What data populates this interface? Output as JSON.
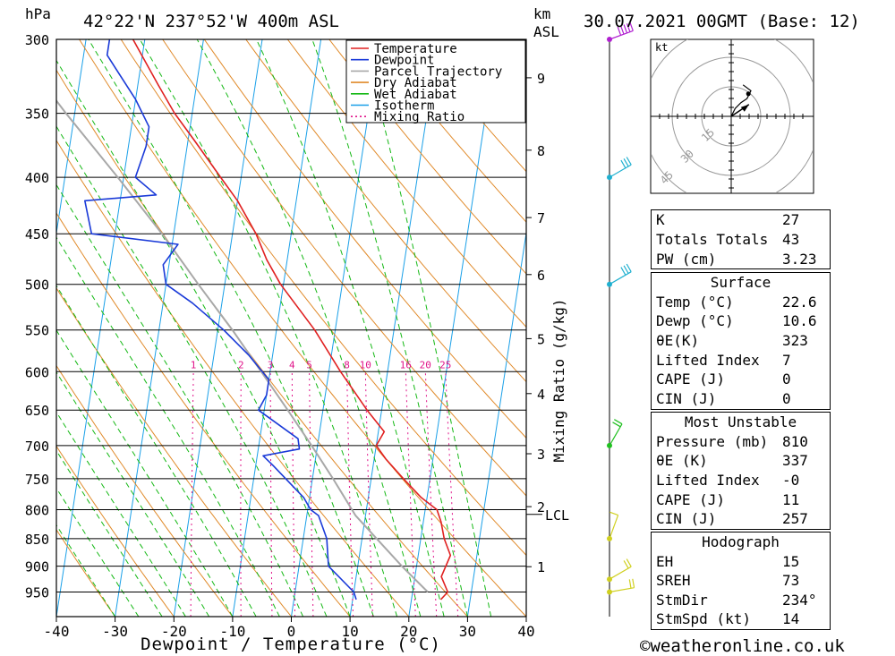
{
  "header": {
    "units_left": "hPa",
    "location": "42°22'N  237°52'W  400m  ASL",
    "km_label": "km",
    "asl_label": "ASL",
    "datetime": "30.07.2021  00GMT  (Base: 12)"
  },
  "chart_data": {
    "type": "skew-t",
    "xlabel": "Dewpoint / Temperature (°C)",
    "ylabel_right": "Mixing Ratio (g/kg)",
    "pressure_levels": [
      300,
      350,
      400,
      450,
      500,
      550,
      600,
      650,
      700,
      750,
      800,
      850,
      900,
      950
    ],
    "temperature_ticks": [
      -40,
      -30,
      -20,
      -10,
      0,
      10,
      20,
      30,
      40
    ],
    "km_levels": [
      {
        "km": 1,
        "p": 901
      },
      {
        "km": 2,
        "p": 795
      },
      {
        "km": 3,
        "p": 712
      },
      {
        "km": 4,
        "p": 628
      },
      {
        "km": 5,
        "p": 560
      },
      {
        "km": 6,
        "p": 490
      },
      {
        "km": 7,
        "p": 435
      },
      {
        "km": 8,
        "p": 378
      },
      {
        "km": 9,
        "p": 325
      }
    ],
    "lcl": {
      "label": "LCL",
      "p": 808
    },
    "mixing_ratio_labels": [
      "1",
      "2",
      "3",
      "4",
      "5",
      "8",
      "10",
      "16",
      "20",
      "25"
    ],
    "mixing_ratio_values": [
      1,
      2,
      3,
      4,
      5,
      8,
      10,
      16,
      20,
      25
    ],
    "legend": [
      "Temperature",
      "Dewpoint",
      "Parcel Trajectory",
      "Dry Adiabat",
      "Wet Adiabat",
      "Isotherm",
      "Mixing Ratio"
    ],
    "colors": {
      "temperature": "#e02020",
      "dewpoint": "#1a3ad8",
      "parcel": "#a8a8a8",
      "dry_adiabat": "#e08a2a",
      "wet_adiabat": "#14b814",
      "isotherm": "#1aa0e8",
      "mixing_ratio": "#e0148a"
    },
    "temperature": [
      {
        "p": 965,
        "t": 25.0
      },
      {
        "p": 950,
        "t": 26.0
      },
      {
        "p": 920,
        "t": 24.5
      },
      {
        "p": 880,
        "t": 25.5
      },
      {
        "p": 850,
        "t": 24.0
      },
      {
        "p": 820,
        "t": 23.0
      },
      {
        "p": 800,
        "t": 22.0
      },
      {
        "p": 780,
        "t": 19.0
      },
      {
        "p": 750,
        "t": 15.5
      },
      {
        "p": 720,
        "t": 12.0
      },
      {
        "p": 700,
        "t": 10.0
      },
      {
        "p": 680,
        "t": 11.0
      },
      {
        "p": 650,
        "t": 7.5
      },
      {
        "p": 600,
        "t": 2.0
      },
      {
        "p": 550,
        "t": -3.5
      },
      {
        "p": 500,
        "t": -10.5
      },
      {
        "p": 475,
        "t": -13.5
      },
      {
        "p": 450,
        "t": -16.0
      },
      {
        "p": 420,
        "t": -20.0
      },
      {
        "p": 400,
        "t": -23.5
      },
      {
        "p": 370,
        "t": -29.0
      },
      {
        "p": 350,
        "t": -33.0
      },
      {
        "p": 330,
        "t": -36.5
      },
      {
        "p": 300,
        "t": -42.0
      }
    ],
    "dewpoint": [
      {
        "p": 965,
        "t": 10.6
      },
      {
        "p": 950,
        "t": 10.0
      },
      {
        "p": 900,
        "t": 5.0
      },
      {
        "p": 850,
        "t": 4.0
      },
      {
        "p": 810,
        "t": 2.0
      },
      {
        "p": 800,
        "t": 0.5
      },
      {
        "p": 780,
        "t": -1.0
      },
      {
        "p": 730,
        "t": -7.0
      },
      {
        "p": 715,
        "t": -9.0
      },
      {
        "p": 705,
        "t": -3.0
      },
      {
        "p": 690,
        "t": -3.5
      },
      {
        "p": 650,
        "t": -11.0
      },
      {
        "p": 630,
        "t": -10.0
      },
      {
        "p": 610,
        "t": -10.0
      },
      {
        "p": 580,
        "t": -14.0
      },
      {
        "p": 550,
        "t": -19.0
      },
      {
        "p": 520,
        "t": -25.0
      },
      {
        "p": 500,
        "t": -30.0
      },
      {
        "p": 480,
        "t": -31.0
      },
      {
        "p": 460,
        "t": -29.0
      },
      {
        "p": 450,
        "t": -44.0
      },
      {
        "p": 420,
        "t": -46.0
      },
      {
        "p": 415,
        "t": -34.0
      },
      {
        "p": 400,
        "t": -38.0
      },
      {
        "p": 375,
        "t": -37.0
      },
      {
        "p": 360,
        "t": -37.0
      },
      {
        "p": 340,
        "t": -40.0
      },
      {
        "p": 310,
        "t": -46.0
      },
      {
        "p": 300,
        "t": -46.0
      }
    ],
    "parcel": [
      {
        "p": 950,
        "t": 22.6
      },
      {
        "p": 900,
        "t": 17.5
      },
      {
        "p": 850,
        "t": 12.5
      },
      {
        "p": 810,
        "t": 8.3
      },
      {
        "p": 750,
        "t": 3.5
      },
      {
        "p": 700,
        "t": -1.0
      },
      {
        "p": 650,
        "t": -6.0
      },
      {
        "p": 600,
        "t": -11.5
      },
      {
        "p": 550,
        "t": -17.5
      },
      {
        "p": 500,
        "t": -24.5
      },
      {
        "p": 450,
        "t": -32.0
      },
      {
        "p": 400,
        "t": -41.0
      },
      {
        "p": 350,
        "t": -51.5
      },
      {
        "p": 300,
        "t": -63.0
      }
    ],
    "hodograph": {
      "units_label": "kt",
      "ring_labels": [
        "15",
        "30",
        "45"
      ],
      "points": [
        {
          "u": 0,
          "v": 0
        },
        {
          "u": 2,
          "v": 4
        },
        {
          "u": 5,
          "v": 7
        },
        {
          "u": 8,
          "v": 9
        },
        {
          "u": 10,
          "v": 13
        },
        {
          "u": 6,
          "v": 16
        }
      ],
      "storm_motion": {
        "u": 9,
        "v": 6
      }
    },
    "wind_barbs": [
      {
        "p": 300,
        "dir": 250,
        "speed": 45,
        "color": "#b020d0"
      },
      {
        "p": 400,
        "dir": 240,
        "speed": 25,
        "color": "#20b0d0"
      },
      {
        "p": 500,
        "dir": 240,
        "speed": 30,
        "color": "#20b0d0"
      },
      {
        "p": 700,
        "dir": 210,
        "speed": 15,
        "color": "#20c020"
      },
      {
        "p": 850,
        "dir": 200,
        "speed": 10,
        "color": "#d0d020"
      },
      {
        "p": 925,
        "dir": 240,
        "speed": 15,
        "color": "#d0d020"
      },
      {
        "p": 950,
        "dir": 260,
        "speed": 15,
        "color": "#d0d020"
      }
    ]
  },
  "indices": {
    "general": [
      {
        "label": "K",
        "value": "27"
      },
      {
        "label": "Totals Totals",
        "value": "43"
      },
      {
        "label": "PW (cm)",
        "value": "3.23"
      }
    ],
    "surface": {
      "title": "Surface",
      "rows": [
        {
          "label": "Temp (°C)",
          "value": "22.6"
        },
        {
          "label": "Dewp (°C)",
          "value": "10.6"
        },
        {
          "label": "θE(K)",
          "value": "323"
        },
        {
          "label": "Lifted Index",
          "value": "7"
        },
        {
          "label": "CAPE (J)",
          "value": "0"
        },
        {
          "label": "CIN (J)",
          "value": "0"
        }
      ]
    },
    "most_unstable": {
      "title": "Most Unstable",
      "rows": [
        {
          "label": "Pressure (mb)",
          "value": "810"
        },
        {
          "label": "θE (K)",
          "value": "337"
        },
        {
          "label": "Lifted Index",
          "value": "-0"
        },
        {
          "label": "CAPE (J)",
          "value": "11"
        },
        {
          "label": "CIN (J)",
          "value": "257"
        }
      ]
    },
    "hodograph": {
      "title": "Hodograph",
      "rows": [
        {
          "label": "EH",
          "value": "15"
        },
        {
          "label": "SREH",
          "value": "73"
        },
        {
          "label": "StmDir",
          "value": "234°"
        },
        {
          "label": "StmSpd (kt)",
          "value": "14"
        }
      ]
    }
  },
  "footer": {
    "copyright": "©weatheronline.co.uk"
  }
}
